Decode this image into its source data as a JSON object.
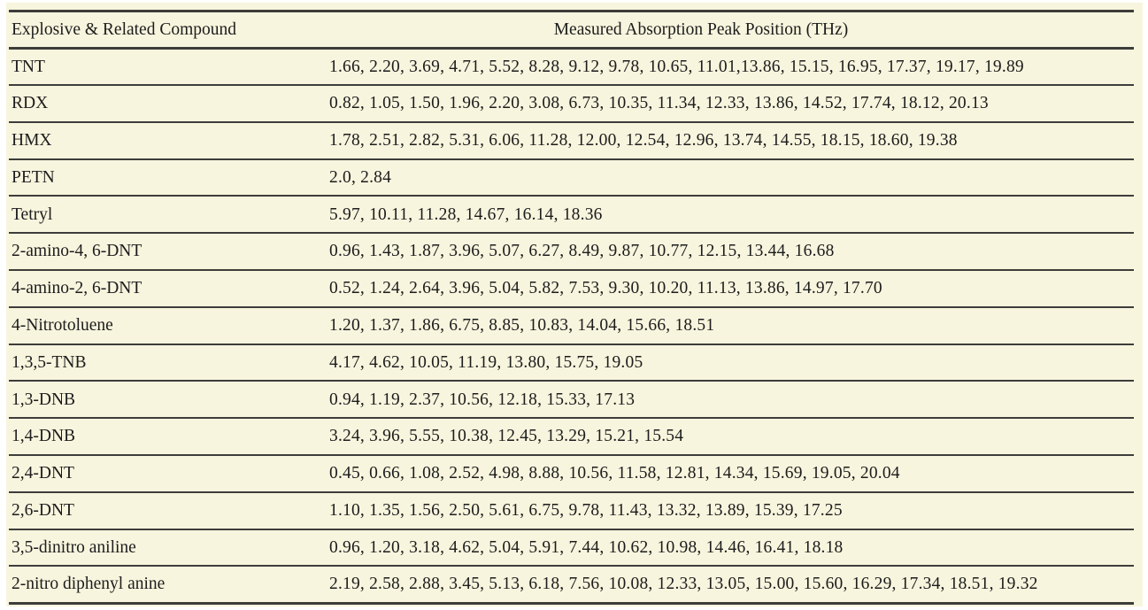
{
  "page": {
    "background": "#ffffff",
    "sheet_background": "#f8f5de",
    "rule_color": "#3d3d3b",
    "text_color": "#1c1c1c"
  },
  "table": {
    "columns": [
      "Explosive & Related Compound",
      "Measured Absorption Peak Position (THz)"
    ],
    "rows": [
      {
        "compound": "TNT",
        "peaks": "1.66, 2.20, 3.69, 4.71, 5.52, 8.28, 9.12, 9.78, 10.65, 11.01,13.86, 15.15, 16.95, 17.37, 19.17, 19.89"
      },
      {
        "compound": "RDX",
        "peaks": "0.82, 1.05, 1.50, 1.96, 2.20, 3.08, 6.73, 10.35, 11.34, 12.33, 13.86, 14.52, 17.74, 18.12, 20.13"
      },
      {
        "compound": "HMX",
        "peaks": "1.78, 2.51, 2.82, 5.31, 6.06, 11.28, 12.00, 12.54, 12.96, 13.74, 14.55, 18.15, 18.60, 19.38"
      },
      {
        "compound": "PETN",
        "peaks": "2.0, 2.84"
      },
      {
        "compound": "Tetryl",
        "peaks": "5.97, 10.11, 11.28, 14.67, 16.14, 18.36"
      },
      {
        "compound": "2-amino-4, 6-DNT",
        "peaks": "0.96, 1.43, 1.87, 3.96, 5.07, 6.27, 8.49, 9.87, 10.77, 12.15, 13.44, 16.68"
      },
      {
        "compound": "4-amino-2, 6-DNT",
        "peaks": "0.52, 1.24, 2.64, 3.96, 5.04, 5.82, 7.53, 9.30, 10.20, 11.13, 13.86, 14.97, 17.70"
      },
      {
        "compound": "4-Nitrotoluene",
        "peaks": "1.20, 1.37, 1.86, 6.75, 8.85, 10.83, 14.04, 15.66, 18.51"
      },
      {
        "compound": "1,3,5-TNB",
        "peaks": "4.17, 4.62, 10.05, 11.19, 13.80, 15.75, 19.05"
      },
      {
        "compound": "1,3-DNB",
        "peaks": "0.94, 1.19, 2.37, 10.56, 12.18, 15.33, 17.13"
      },
      {
        "compound": "1,4-DNB",
        "peaks": "3.24, 3.96, 5.55, 10.38, 12.45, 13.29, 15.21, 15.54"
      },
      {
        "compound": "2,4-DNT",
        "peaks": "0.45, 0.66, 1.08, 2.52, 4.98, 8.88, 10.56, 11.58, 12.81, 14.34, 15.69, 19.05, 20.04"
      },
      {
        "compound": "2,6-DNT",
        "peaks": "1.10, 1.35, 1.56, 2.50, 5.61, 6.75, 9.78, 11.43, 13.32, 13.89, 15.39, 17.25"
      },
      {
        "compound": "3,5-dinitro aniline",
        "peaks": "0.96, 1.20, 3.18, 4.62, 5.04, 5.91, 7.44, 10.62, 10.98, 14.46, 16.41, 18.18"
      },
      {
        "compound": "2-nitro diphenyl anine",
        "peaks": "2.19, 2.58, 2.88, 3.45, 5.13, 6.18, 7.56, 10.08, 12.33, 13.05, 15.00, 15.60, 16.29, 17.34, 18.51, 19.32"
      }
    ]
  }
}
